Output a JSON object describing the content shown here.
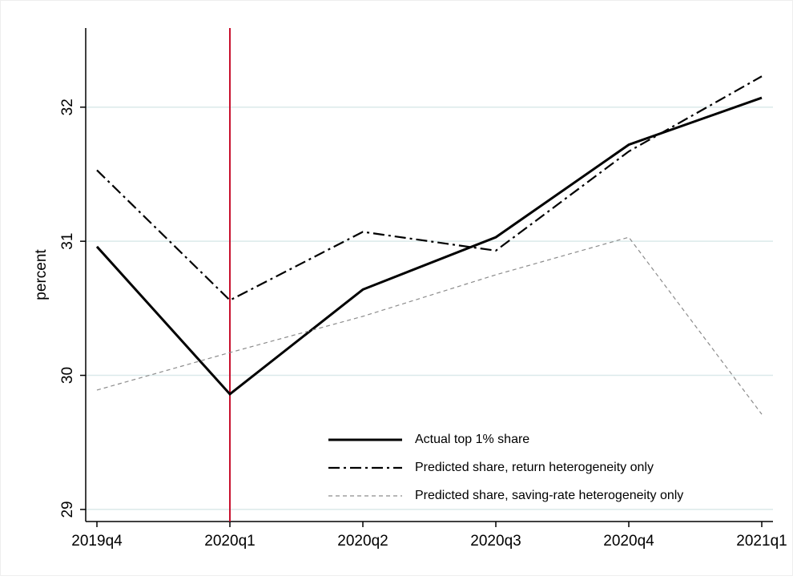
{
  "chart_data": {
    "type": "line",
    "y_label": "percent",
    "categories": [
      "2019q4",
      "2020q1",
      "2020q2",
      "2020q3",
      "2020q4",
      "2021q1"
    ],
    "series": [
      {
        "name": "Actual top 1% share",
        "color": "#000000",
        "style": "solid",
        "values": [
          30.96,
          29.86,
          30.64,
          31.03,
          31.72,
          32.07
        ]
      },
      {
        "name": "Predicted share, return heterogeneity only",
        "color": "#000000",
        "style": "dashdot",
        "values": [
          31.53,
          30.56,
          31.07,
          30.93,
          31.67,
          32.23
        ]
      },
      {
        "name": "Predicted share, saving-rate heterogeneity only",
        "color": "#8c8c8c",
        "style": "dash",
        "values": [
          29.89,
          30.17,
          30.44,
          30.75,
          31.03,
          29.71
        ]
      }
    ],
    "ylim": [
      28.91,
      32.59
    ],
    "yticks": [
      29,
      30,
      31,
      32
    ],
    "grid": true,
    "vline": {
      "category": "2020q1",
      "color": "#c8102e"
    },
    "legend": "bottom-right"
  }
}
